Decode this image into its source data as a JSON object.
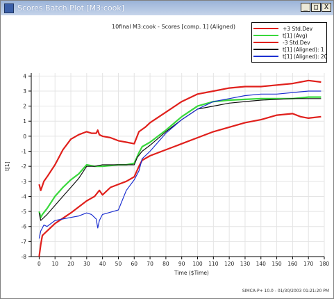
{
  "window": {
    "title": "Scores Batch Plot [M3:cook]",
    "buttons": [
      "_",
      "□",
      "X"
    ]
  },
  "colors": {
    "plus3": "#e0201c",
    "avg": "#39d83c",
    "minus3": "#e0201c",
    "aligned1": "#111111",
    "aligned20": "#1c2fd0"
  },
  "chart_data": {
    "type": "line",
    "title": "10final M3:cook - Scores [comp. 1] (Aligned)",
    "xlabel": "Time ($Time)",
    "ylabel": "t[1]",
    "xlim": [
      -5,
      180
    ],
    "ylim": [
      -8,
      4.2
    ],
    "xticks": [
      0,
      10,
      20,
      30,
      40,
      50,
      60,
      70,
      80,
      90,
      100,
      110,
      120,
      130,
      140,
      150,
      160,
      170,
      180
    ],
    "yticks": [
      -8,
      -7,
      -6,
      -5,
      -4,
      -3,
      -2,
      -1,
      0,
      1,
      2,
      3,
      4
    ],
    "grid": true,
    "legend_position": "top-right",
    "series": [
      {
        "name": "+3 Std.Dev",
        "color": "#e0201c",
        "x": [
          0,
          1,
          2,
          3,
          5,
          10,
          15,
          20,
          25,
          30,
          33,
          36,
          37,
          38,
          40,
          45,
          50,
          55,
          60,
          63,
          67,
          70,
          80,
          90,
          100,
          110,
          120,
          130,
          140,
          150,
          160,
          170,
          178
        ],
        "y": [
          -3.2,
          -3.6,
          -3.3,
          -3.0,
          -2.7,
          -1.9,
          -0.9,
          -0.2,
          0.1,
          0.3,
          0.2,
          0.2,
          0.4,
          0.1,
          0.0,
          -0.1,
          -0.3,
          -0.4,
          -0.5,
          0.3,
          0.6,
          0.9,
          1.6,
          2.3,
          2.8,
          3.0,
          3.2,
          3.3,
          3.3,
          3.4,
          3.5,
          3.7,
          3.6
        ]
      },
      {
        "name": "t[1] (Avg)",
        "color": "#39d83c",
        "x": [
          0,
          1,
          2,
          5,
          10,
          15,
          20,
          25,
          30,
          35,
          40,
          50,
          55,
          60,
          63,
          65,
          70,
          80,
          90,
          100,
          110,
          120,
          130,
          140,
          150,
          160,
          170,
          178
        ],
        "y": [
          -5.0,
          -5.4,
          -5.2,
          -4.8,
          -4.0,
          -3.4,
          -2.9,
          -2.5,
          -1.9,
          -2.0,
          -2.0,
          -1.9,
          -1.9,
          -1.8,
          -1.1,
          -0.7,
          -0.4,
          0.4,
          1.3,
          2.0,
          2.3,
          2.4,
          2.45,
          2.5,
          2.5,
          2.5,
          2.6,
          2.6
        ]
      },
      {
        "name": "-3 Std.Dev",
        "color": "#e0201c",
        "x": [
          0,
          1,
          2,
          3,
          5,
          10,
          20,
          30,
          35,
          38,
          40,
          45,
          50,
          55,
          60,
          63,
          65,
          70,
          80,
          90,
          100,
          110,
          120,
          130,
          140,
          150,
          160,
          165,
          170,
          178
        ],
        "y": [
          -8.0,
          -7.2,
          -6.6,
          -6.5,
          -6.3,
          -5.8,
          -5.1,
          -4.3,
          -4.0,
          -3.6,
          -3.9,
          -3.4,
          -3.2,
          -3.0,
          -2.7,
          -2.0,
          -1.6,
          -1.3,
          -0.9,
          -0.5,
          -0.1,
          0.3,
          0.6,
          0.9,
          1.1,
          1.4,
          1.5,
          1.3,
          1.2,
          1.3
        ]
      },
      {
        "name": "t[1] (Aligned): 1",
        "color": "#111111",
        "x": [
          0,
          1,
          2,
          5,
          10,
          15,
          20,
          25,
          30,
          35,
          40,
          50,
          60,
          62,
          65,
          70,
          80,
          90,
          100,
          110,
          120,
          130,
          140,
          150,
          160,
          170,
          178
        ],
        "y": [
          -5.1,
          -5.6,
          -5.5,
          -5.2,
          -4.6,
          -4.0,
          -3.4,
          -2.8,
          -2.0,
          -2.0,
          -1.9,
          -1.9,
          -1.9,
          -1.4,
          -1.0,
          -0.6,
          0.3,
          1.1,
          1.8,
          2.0,
          2.2,
          2.3,
          2.4,
          2.45,
          2.5,
          2.5,
          2.5
        ]
      },
      {
        "name": "t[1] (Aligned): 20",
        "color": "#1c2fd0",
        "x": [
          0,
          1,
          2,
          3,
          5,
          10,
          15,
          20,
          25,
          30,
          33,
          36,
          37,
          38,
          40,
          50,
          55,
          60,
          63,
          65,
          70,
          80,
          90,
          100,
          110,
          120,
          130,
          140,
          150,
          160,
          170,
          178
        ],
        "y": [
          -6.8,
          -6.3,
          -6.1,
          -5.9,
          -6.0,
          -5.6,
          -5.5,
          -5.4,
          -5.3,
          -5.1,
          -5.2,
          -5.5,
          -6.1,
          -5.6,
          -5.2,
          -4.9,
          -3.6,
          -2.9,
          -2.3,
          -1.5,
          -1.0,
          0.2,
          1.1,
          1.8,
          2.3,
          2.5,
          2.7,
          2.8,
          2.8,
          2.9,
          3.0,
          3.0
        ]
      }
    ]
  },
  "footer": {
    "text": "SIMCA-P+ 10.0 - 01/30/2003 01:21:20 PM"
  }
}
